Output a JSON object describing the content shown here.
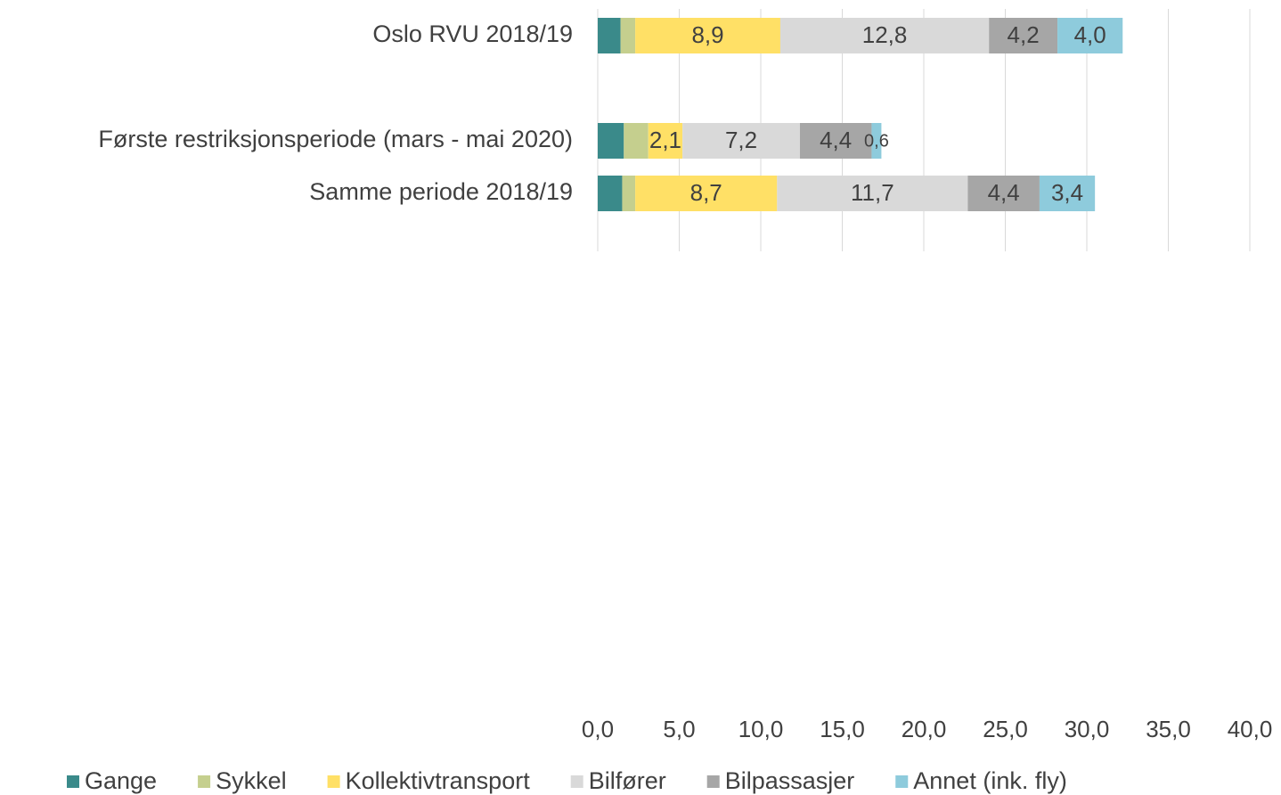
{
  "chart_data": {
    "type": "stacked-bar-horizontal",
    "categories": [
      "Oslo RVU 2018/19",
      null,
      "Første restriksjonsperiode (mars - mai 2020)",
      "Samme periode 2018/19"
    ],
    "series": [
      {
        "name": "Gange",
        "color": "#3a8a8a",
        "values": [
          1.4,
          null,
          1.6,
          1.5
        ],
        "value_labels": [
          null,
          null,
          null,
          null
        ]
      },
      {
        "name": "Sykkel",
        "color": "#c5cf8e",
        "values": [
          0.9,
          null,
          1.5,
          0.8
        ],
        "value_labels": [
          null,
          null,
          null,
          null
        ]
      },
      {
        "name": "Kollektivtransport",
        "color": "#ffe066",
        "values": [
          8.9,
          null,
          2.1,
          8.7
        ],
        "value_labels": [
          "8,9",
          null,
          "2,1",
          "8,7"
        ]
      },
      {
        "name": "Bilfører",
        "color": "#d9d9d9",
        "values": [
          12.8,
          null,
          7.2,
          11.7
        ],
        "value_labels": [
          "12,8",
          null,
          "7,2",
          "11,7"
        ]
      },
      {
        "name": "Bilpassasjer",
        "color": "#a6a6a6",
        "values": [
          4.2,
          null,
          4.4,
          4.4
        ],
        "value_labels": [
          "4,2",
          null,
          "4,4",
          "4,4"
        ]
      },
      {
        "name": "Annet (ink. fly)",
        "color": "#8ecbdc",
        "values": [
          4.0,
          null,
          0.6,
          3.4
        ],
        "value_labels": [
          "4,0",
          null,
          "0,6",
          "3,4"
        ]
      }
    ],
    "xlim": [
      0,
      40
    ],
    "xticks": [
      {
        "value": 0,
        "label": "0,0"
      },
      {
        "value": 5,
        "label": "5,0"
      },
      {
        "value": 10,
        "label": "10,0"
      },
      {
        "value": 15,
        "label": "15,0"
      },
      {
        "value": 20,
        "label": "20,0"
      },
      {
        "value": 25,
        "label": "25,0"
      },
      {
        "value": 30,
        "label": "30,0"
      },
      {
        "value": 35,
        "label": "35,0"
      },
      {
        "value": 40,
        "label": "40,0"
      }
    ],
    "grid": true,
    "legend": "bottom"
  }
}
